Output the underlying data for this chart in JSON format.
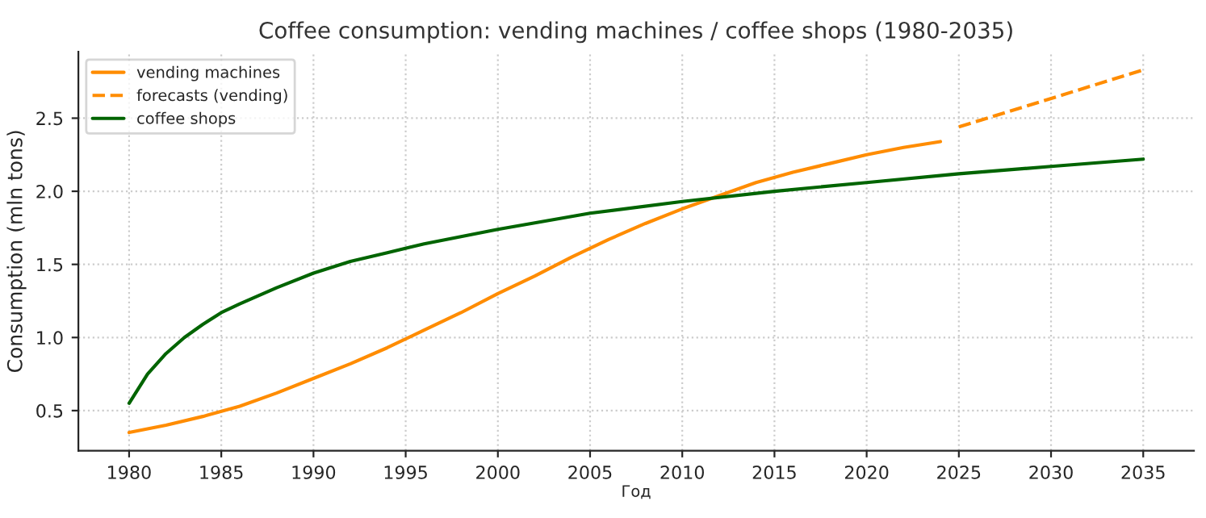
{
  "chart_data": {
    "type": "line",
    "title": "Coffee consumption: vending machines / coffee shops (1980-2035)",
    "xlabel": "Год",
    "ylabel": "Consumption (mln tons)",
    "xlim": [
      1977.25,
      2037.75
    ],
    "xticks": [
      1980,
      1985,
      1990,
      1995,
      2000,
      2005,
      2010,
      2015,
      2020,
      2025,
      2030,
      2035
    ],
    "ylim": [
      0.226,
      2.954
    ],
    "yticks": [
      {
        "value": 0.5,
        "label": "0.5"
      },
      {
        "value": 1.0,
        "label": "1.0"
      },
      {
        "value": 1.5,
        "label": "1.5"
      },
      {
        "value": 2.0,
        "label": "2.0"
      },
      {
        "value": 2.5,
        "label": "2.5"
      }
    ],
    "grid": true,
    "legend": "top left",
    "marker": "none",
    "series": [
      {
        "name": "vending machines",
        "color": "#ff8c00",
        "line_style": "solid",
        "x": [
          1980,
          1982,
          1984,
          1986,
          1988,
          1990,
          1992,
          1994,
          1996,
          1998,
          2000,
          2002,
          2004,
          2006,
          2008,
          2010,
          2012,
          2014,
          2016,
          2018,
          2020,
          2022,
          2024
        ],
        "values": [
          0.35,
          0.4,
          0.46,
          0.53,
          0.62,
          0.72,
          0.82,
          0.93,
          1.05,
          1.17,
          1.3,
          1.42,
          1.55,
          1.67,
          1.78,
          1.88,
          1.97,
          2.06,
          2.13,
          2.19,
          2.25,
          2.3,
          2.34
        ]
      },
      {
        "name": "forecasts (vending)",
        "color": "#ff8c00",
        "line_style": "dashed",
        "x": [
          2025,
          2035
        ],
        "values": [
          2.44,
          2.83
        ]
      },
      {
        "name": "coffee shops",
        "color": "#006400",
        "line_style": "solid",
        "x": [
          1980,
          1981,
          1982,
          1983,
          1984,
          1985,
          1986,
          1988,
          1990,
          1992,
          1994,
          1996,
          1998,
          2000,
          2005,
          2010,
          2015,
          2020,
          2025,
          2030,
          2035
        ],
        "values": [
          0.55,
          0.75,
          0.89,
          1.0,
          1.09,
          1.17,
          1.23,
          1.34,
          1.44,
          1.52,
          1.58,
          1.64,
          1.69,
          1.74,
          1.85,
          1.93,
          2.0,
          2.06,
          2.12,
          2.17,
          2.22
        ]
      }
    ]
  }
}
